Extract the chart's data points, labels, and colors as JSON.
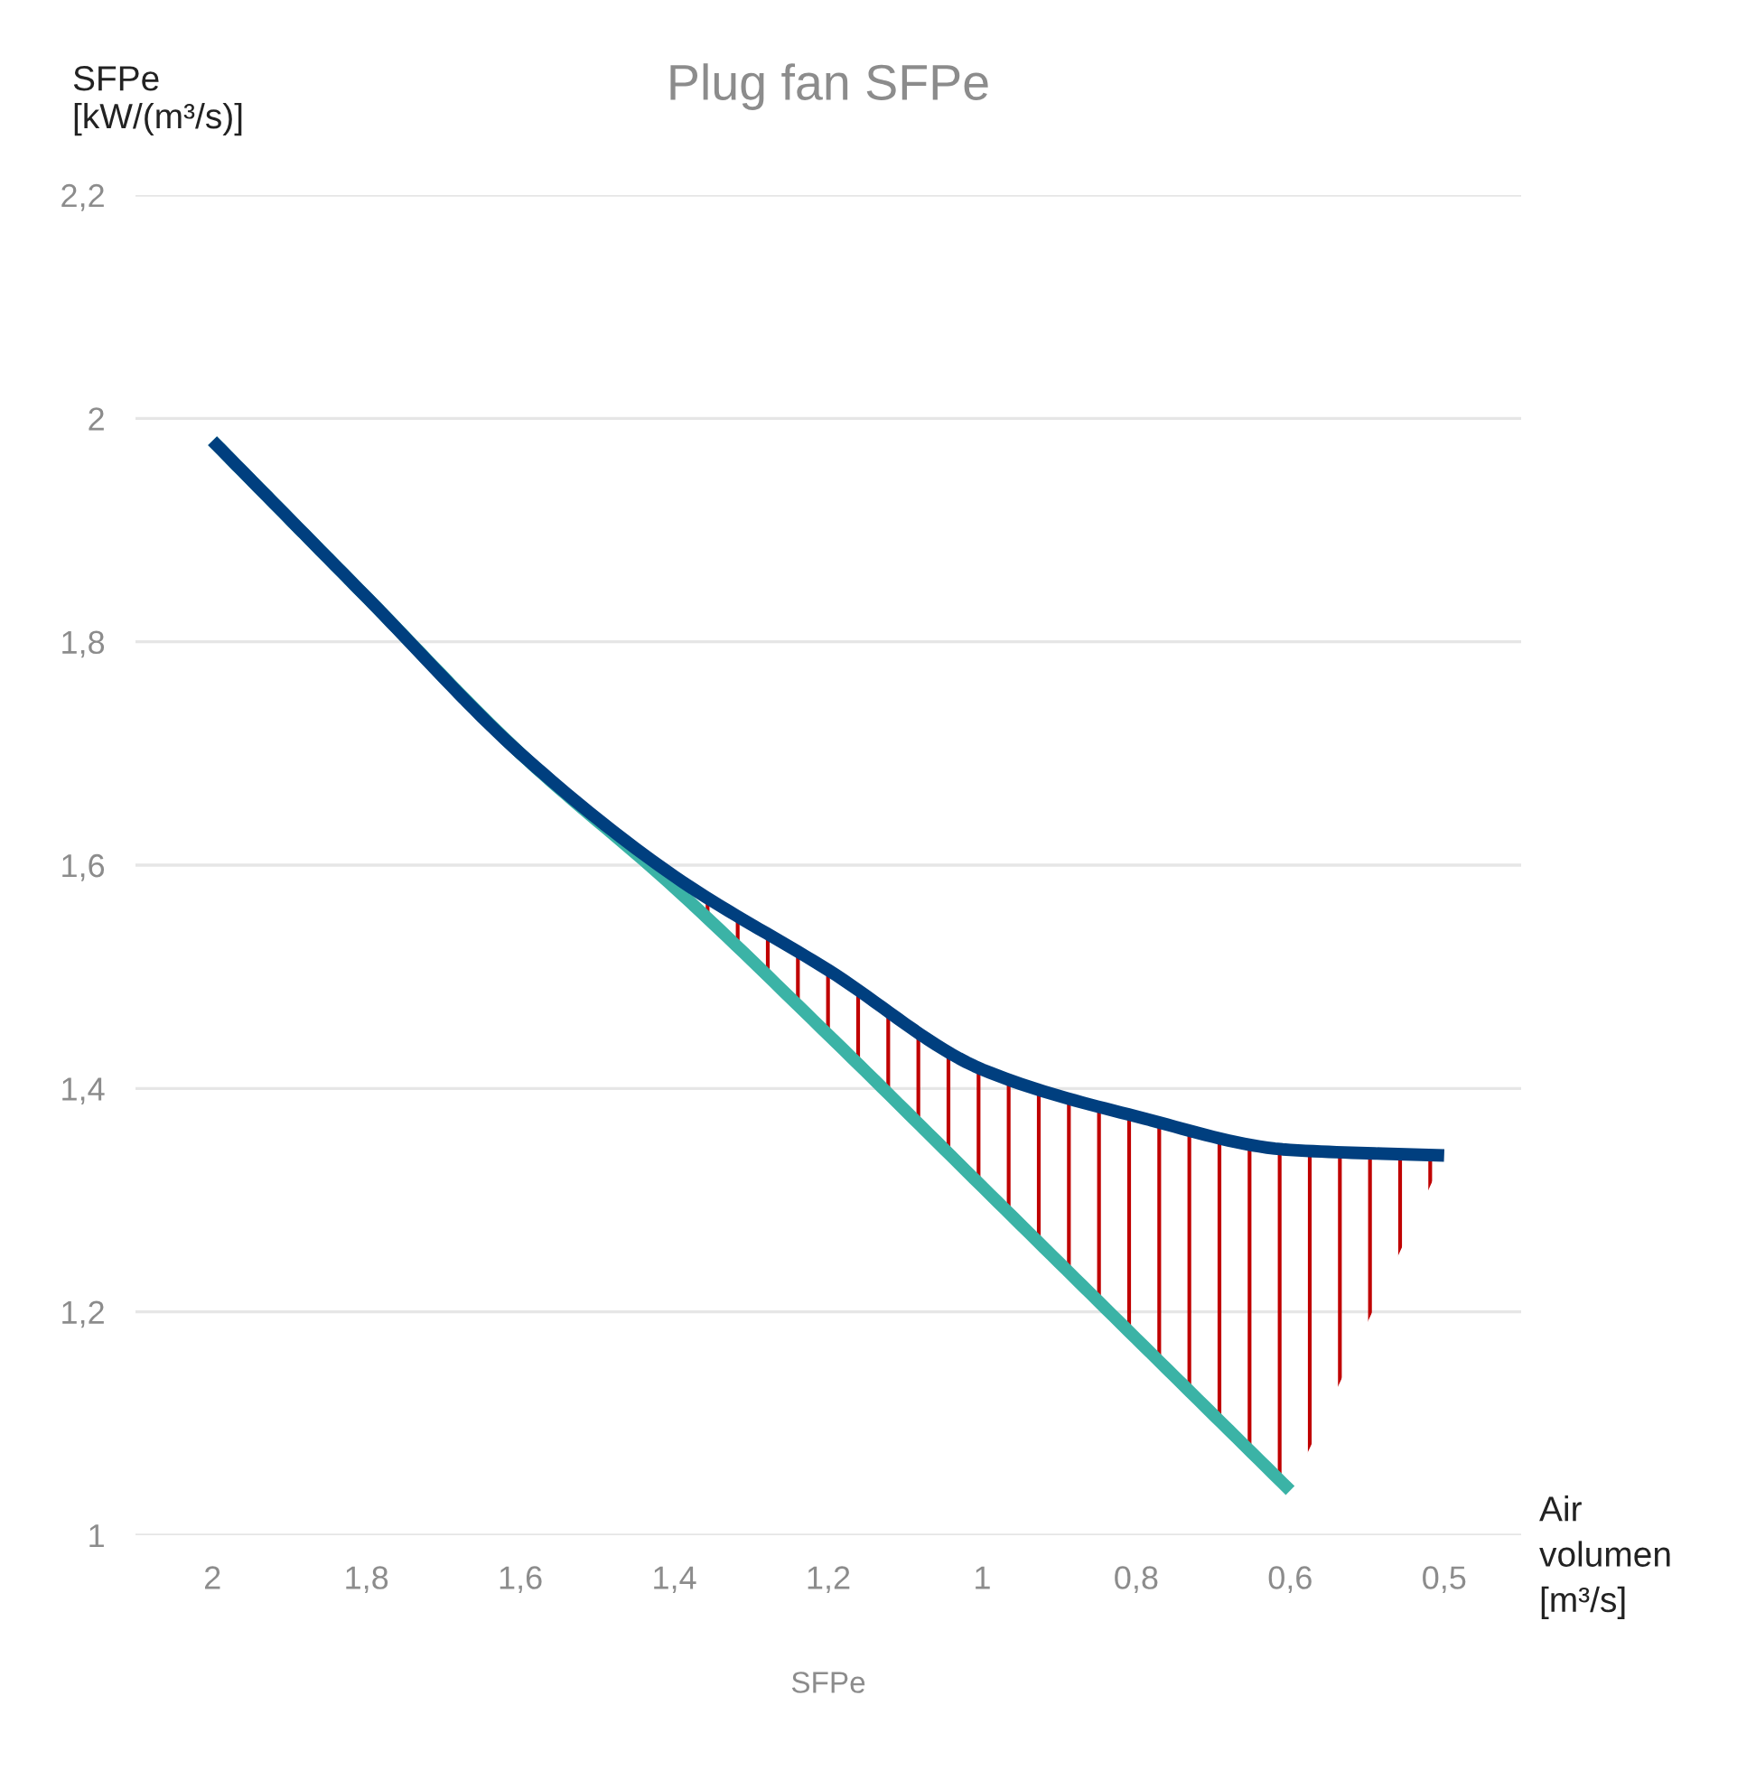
{
  "chart_data": {
    "type": "line",
    "title": "Plug fan SFPe",
    "xlabel": "SFPe",
    "ylabel": "SFPe [kW/(m³/s)]",
    "annotations": [
      "Air volumen [m³/s]"
    ],
    "categories": [
      "2",
      "1,8",
      "1,6",
      "1,4",
      "1,2",
      "1",
      "0,8",
      "0,6",
      "0,5"
    ],
    "series": [
      {
        "color": "#3bb3a6",
        "values": [
          1.98,
          1.84,
          1.7,
          1.58,
          1.448,
          1.312,
          1.176,
          1.04,
          null
        ]
      },
      {
        "color": "#003f7f",
        "values": [
          1.98,
          1.84,
          1.7,
          1.59,
          1.506,
          1.417,
          1.375,
          1.345,
          1.34
        ],
        "lower": [
          1.98,
          1.84,
          1.7,
          1.58,
          1.448,
          1.312,
          1.176,
          1.04,
          1.34
        ],
        "upper": [
          1.98,
          1.84,
          1.7,
          1.59,
          1.506,
          1.417,
          1.375,
          1.345,
          1.34
        ]
      }
    ],
    "ylim": [
      1,
      2.2
    ],
    "yticks": [
      1,
      {
        "value": 1.2,
        "label": "1,2"
      },
      {
        "value": 1.4,
        "label": "1,4"
      },
      {
        "value": 1.6,
        "label": "1,6"
      },
      {
        "value": 1.8,
        "label": "1,8"
      },
      2,
      {
        "value": 2.2,
        "label": "2,2"
      }
    ],
    "grid": "y",
    "marker": "none",
    "line_style": "solid",
    "legend": false
  }
}
